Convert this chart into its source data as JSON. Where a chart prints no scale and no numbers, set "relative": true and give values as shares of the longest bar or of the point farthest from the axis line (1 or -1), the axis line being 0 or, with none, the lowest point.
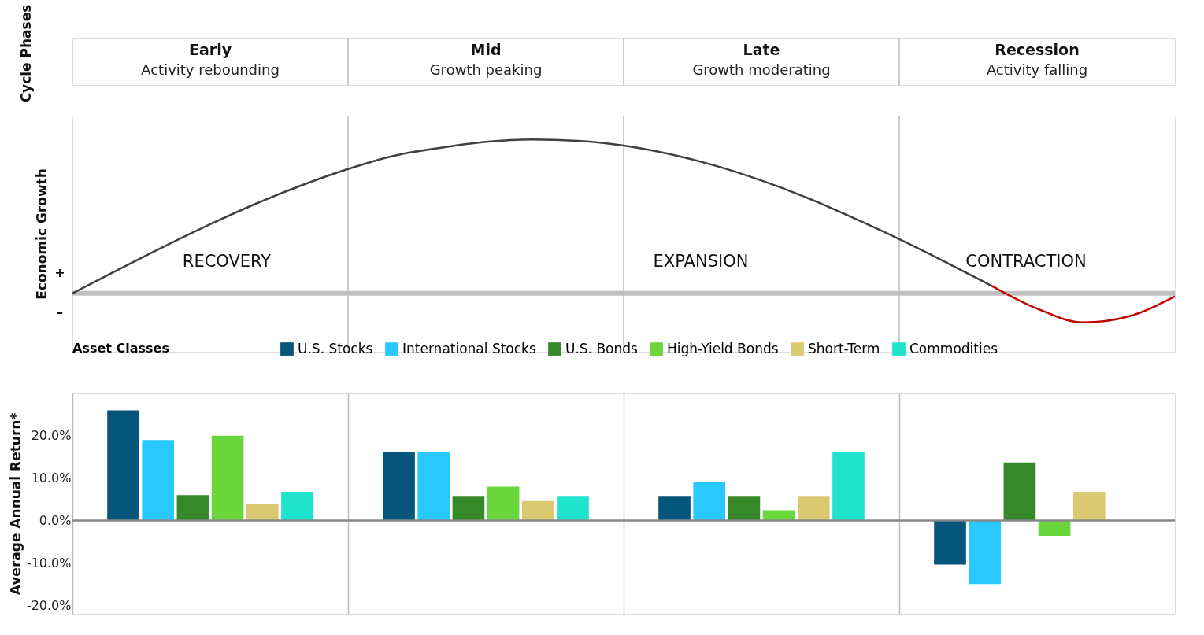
{
  "chart_data": [
    {
      "type": "line",
      "relative": true,
      "ylabel": "Economic Growth",
      "grid": "x",
      "marker": "none",
      "line_style": "solid",
      "categories": [
        null,
        null,
        null,
        null,
        null,
        null,
        null,
        null,
        null,
        null,
        null,
        null,
        null,
        null,
        null,
        null,
        null,
        null,
        null,
        null,
        null,
        null,
        null,
        null,
        null
      ],
      "series": [
        {
          "color": "#404040",
          "values": [
            0,
            0.154,
            0.305,
            0.449,
            0.583,
            0.703,
            0.808,
            0.894,
            0.945,
            0.984,
            1.0,
            0.991,
            0.96,
            0.905,
            0.829,
            0.733,
            0.62,
            0.49,
            0.352,
            0.204,
            0.05,
            null,
            null,
            null,
            null
          ]
        },
        {
          "color": "#c00000",
          "values": [
            null,
            null,
            null,
            null,
            null,
            null,
            null,
            null,
            null,
            null,
            null,
            null,
            null,
            null,
            null,
            null,
            null,
            null,
            null,
            null,
            0.05,
            -0.1,
            -0.19,
            -0.15,
            -0.02
          ]
        }
      ],
      "ref_lines": [
        {
          "axis": "y",
          "value": 0,
          "color": "#c0c0c0"
        }
      ],
      "annotations": [
        "Cycle Phases",
        "+",
        "–",
        "RECOVERY",
        "EXPANSION",
        "CONTRACTION"
      ]
    },
    {
      "type": "bar",
      "ylabel": "Average Annual Return*",
      "legend_title": "Asset Classes",
      "legend": "top",
      "grid": "x",
      "categories": [
        null,
        null,
        null,
        null
      ],
      "annotations": [
        "Early",
        "Activity rebounding",
        "Mid",
        "Growth peaking",
        "Late",
        "Growth moderating",
        "Recession",
        "Activity falling"
      ],
      "ylim": [
        -22,
        30
      ],
      "yticks": [
        {
          "value": -20,
          "label": "-20.0%"
        },
        {
          "value": -10,
          "label": "-10.0%"
        },
        {
          "value": 0,
          "label": "0.0%"
        },
        {
          "value": 10,
          "label": "10.0%"
        },
        {
          "value": 20,
          "label": "20.0%"
        }
      ],
      "ref_lines": [
        {
          "axis": "y",
          "value": 0,
          "color": "#888888"
        }
      ],
      "series": [
        {
          "name": "U.S. Stocks",
          "color": "#06557a",
          "values": [
            26.0,
            16.1,
            5.8,
            -10.4
          ]
        },
        {
          "name": "International Stocks",
          "color": "#29c9ff",
          "values": [
            19.0,
            16.1,
            9.2,
            -15.0
          ]
        },
        {
          "name": "U.S. Bonds",
          "color": "#368929",
          "values": [
            6.0,
            5.8,
            5.8,
            13.7
          ]
        },
        {
          "name": "High-Yield Bonds",
          "color": "#6bd63b",
          "values": [
            20.0,
            8.0,
            2.4,
            -3.6
          ]
        },
        {
          "name": "Short-Term",
          "color": "#dbc972",
          "values": [
            3.9,
            4.6,
            5.8,
            6.8
          ]
        },
        {
          "name": "Commodities",
          "color": "#1fe3cc",
          "values": [
            6.8,
            5.8,
            16.1,
            null
          ]
        }
      ]
    }
  ]
}
